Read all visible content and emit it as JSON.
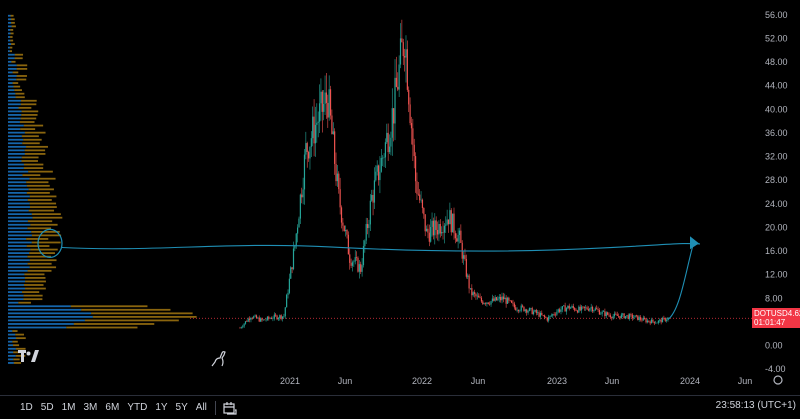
{
  "chart_data": {
    "type": "candlestick",
    "symbol": "DOTUSD",
    "last_price": "4.62",
    "countdown": "01:01:47",
    "y_ticks": [
      "56.00",
      "52.00",
      "48.00",
      "44.00",
      "40.00",
      "36.00",
      "32.00",
      "28.00",
      "24.00",
      "20.00",
      "16.00",
      "12.00",
      "8.00",
      "4.00",
      "0.00",
      "-4.00"
    ],
    "x_ticks": [
      "2021",
      "Jun",
      "2022",
      "Jun",
      "2023",
      "Jun",
      "2024",
      "Jun"
    ],
    "ylim": [
      -5.5,
      57.5
    ],
    "price_series": {
      "x": [
        "2020-08",
        "2020-09",
        "2020-10",
        "2020-11",
        "2020-12",
        "2021-01",
        "2021-02",
        "2021-03",
        "2021-04",
        "2021-05",
        "2021-06",
        "2021-07",
        "2021-08",
        "2021-09",
        "2021-10",
        "2021-11",
        "2021-12",
        "2022-01",
        "2022-02",
        "2022-03",
        "2022-04",
        "2022-05",
        "2022-06",
        "2022-07",
        "2022-08",
        "2022-09",
        "2022-10",
        "2022-11",
        "2022-12",
        "2023-01",
        "2023-02",
        "2023-03",
        "2023-04",
        "2023-05",
        "2023-06",
        "2023-07",
        "2023-08",
        "2023-09",
        "2023-10",
        "2023-11"
      ],
      "y": [
        3.0,
        5.0,
        4.2,
        4.8,
        5.0,
        17.0,
        33.0,
        38.0,
        42.0,
        25.0,
        15.0,
        13.0,
        25.0,
        32.0,
        40.0,
        53.0,
        28.0,
        19.0,
        20.0,
        22.0,
        18.0,
        9.0,
        7.5,
        7.5,
        8.0,
        6.5,
        6.2,
        5.5,
        4.5,
        6.0,
        6.5,
        6.0,
        6.5,
        5.5,
        5.0,
        5.0,
        4.8,
        4.2,
        4.0,
        4.62
      ]
    },
    "volume_profile": "left-side horizontal volume histogram, highest volume near 5.00",
    "annotations": [
      "hand-drawn circle near 17",
      "horizontal curved line at ~16.5",
      "upward arrow from ~4.6 to ~17"
    ],
    "colors": {
      "up": "#26a69a",
      "down": "#ef5350",
      "annotation": "#1f8fb5",
      "vp_blue": "#1e88e5",
      "vp_yellow": "#e6a817",
      "current": "#f23645"
    }
  },
  "toolbar": {
    "ranges": [
      "1D",
      "5D",
      "1M",
      "3M",
      "6M",
      "YTD",
      "1Y",
      "5Y",
      "All"
    ],
    "clock": "23:58:13 (UTC+1)"
  }
}
